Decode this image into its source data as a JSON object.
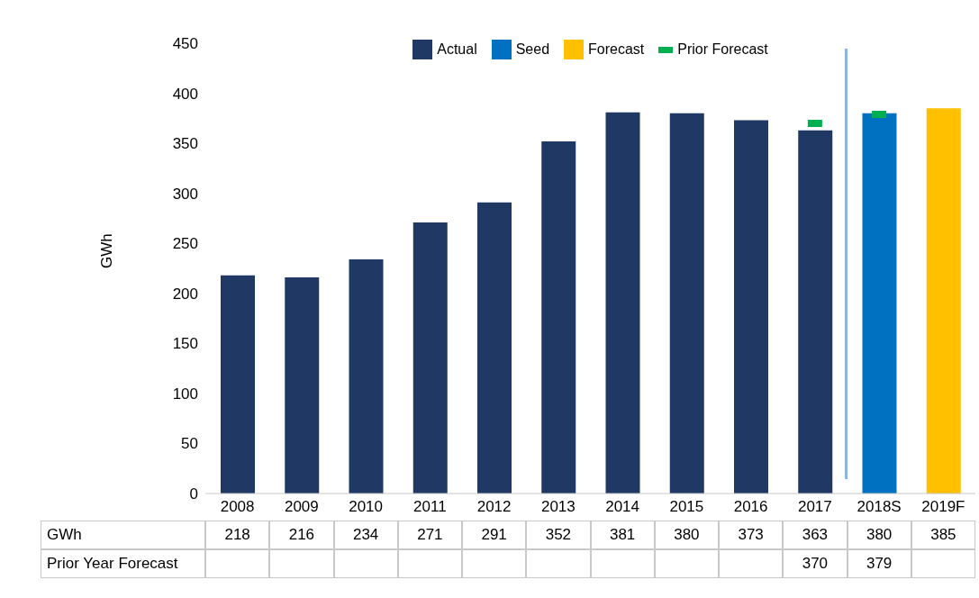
{
  "chart_data": {
    "type": "bar",
    "ylabel": "GWh",
    "categories": [
      "2008",
      "2009",
      "2010",
      "2011",
      "2012",
      "2013",
      "2014",
      "2015",
      "2016",
      "2017",
      "2018S",
      "2019F"
    ],
    "ylim": [
      0,
      450
    ],
    "yticks": [
      0,
      50,
      100,
      150,
      200,
      250,
      300,
      350,
      400,
      450
    ],
    "legend": "top",
    "data_labels": true,
    "annotations": [
      "GWh",
      "Prior Year Forecast"
    ],
    "series": [
      {
        "name": "Actual",
        "color": "#1f3864",
        "values": [
          218,
          216,
          234,
          271,
          291,
          352,
          381,
          380,
          373,
          363,
          null,
          null
        ]
      },
      {
        "name": "Seed",
        "color": "#0070c0",
        "values": [
          null,
          null,
          null,
          null,
          null,
          null,
          null,
          null,
          null,
          null,
          380,
          null
        ]
      },
      {
        "name": "Forecast",
        "color": "#ffc000",
        "values": [
          null,
          null,
          null,
          null,
          null,
          null,
          null,
          null,
          null,
          null,
          null,
          385
        ]
      },
      {
        "name": "Prior Forecast",
        "type": "scatter",
        "color": "#00b050",
        "values": [
          null,
          null,
          null,
          null,
          null,
          null,
          null,
          null,
          null,
          370,
          379,
          null
        ]
      }
    ]
  }
}
